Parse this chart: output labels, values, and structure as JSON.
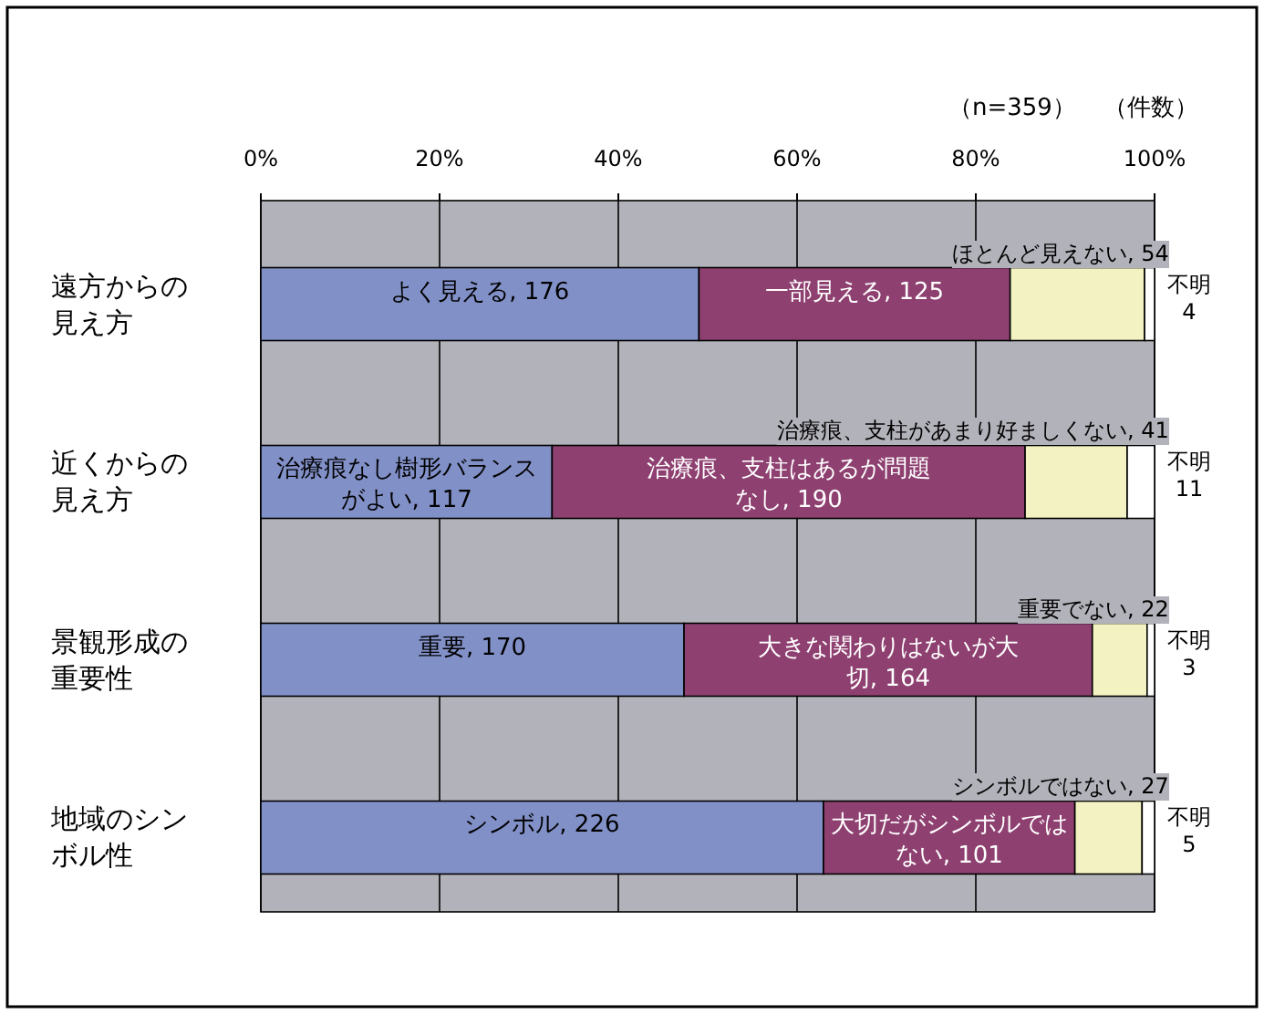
{
  "chart_data": {
    "type": "bar",
    "orientation": "horizontal",
    "stacked": true,
    "grid": "x",
    "categories": [
      "遠方からの見え方",
      "近くからの見え方",
      "景観形成の重要性",
      "地域のシンボル性"
    ],
    "series": [
      {
        "color": "#8290c8",
        "values": [
          176,
          117,
          170,
          226
        ],
        "value_labels": [
          "よく見える, 176",
          "治療痕なし樹形バランスがよい, 117",
          "重要, 170",
          "シンボル, 226"
        ]
      },
      {
        "color": "#8e4070",
        "values": [
          125,
          190,
          164,
          101
        ],
        "value_labels": [
          "一部見える, 125",
          "治療痕、支柱はあるが問題なし, 190",
          "大きな関わりはないが大切, 164",
          "大切だがシンボルではない, 101"
        ]
      },
      {
        "color": "#f2f2c2",
        "values": [
          54,
          41,
          22,
          27
        ],
        "value_labels": [
          "ほとんど見えない, 54",
          "治療痕、支柱があまり好ましくない, 41",
          "重要でない, 22",
          "シンボルではない, 27"
        ]
      },
      {
        "color": "#ffffff",
        "values": [
          4,
          11,
          3,
          5
        ],
        "value_labels": [
          "不明 4",
          "不明 11",
          "不明 3",
          "不明 5"
        ]
      }
    ],
    "xlim": [
      0,
      359
    ],
    "x2lim": [
      0,
      100
    ],
    "x2ticks": [
      {
        "value": 0,
        "label": "0%"
      },
      {
        "value": 20,
        "label": "20%"
      },
      {
        "value": 40,
        "label": "40%"
      },
      {
        "value": 60,
        "label": "60%"
      },
      {
        "value": 80,
        "label": "80%"
      },
      {
        "value": 100,
        "label": "100%"
      }
    ],
    "annotations": [
      "（n=359）",
      "（件数）"
    ]
  }
}
